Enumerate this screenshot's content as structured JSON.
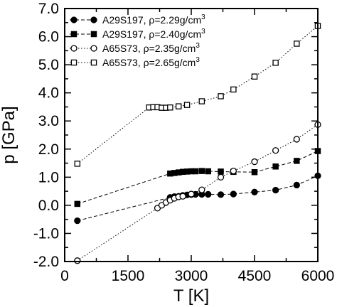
{
  "chart_data": {
    "type": "scatter",
    "xlabel": "T [K]",
    "ylabel": "p [GPa]",
    "xlim": [
      0,
      6000
    ],
    "ylim": [
      -2.0,
      7.0
    ],
    "xticks": [
      "0",
      "1500",
      "3000",
      "4500",
      "6000"
    ],
    "xtick_values": [
      0,
      1500,
      3000,
      4500,
      6000
    ],
    "yticks": [
      "-2.0",
      "-1.0",
      "0.0",
      "1.0",
      "2.0",
      "3.0",
      "4.0",
      "5.0",
      "6.0",
      "7.0"
    ],
    "ytick_values": [
      -2,
      -1,
      0,
      1,
      2,
      3,
      4,
      5,
      6,
      7
    ],
    "grid": false,
    "legend_position": "top-left",
    "series": [
      {
        "name": "A29S197, ρ=2.29g/cm",
        "name_sup": "3",
        "marker": "filled-circle",
        "line": "dashed",
        "x": [
          300,
          2500,
          2600,
          2700,
          2800,
          2900,
          3000,
          3100,
          3250,
          3400,
          3700,
          4000,
          4500,
          5000,
          5500,
          6000
        ],
        "y": [
          -0.55,
          0.28,
          0.31,
          0.32,
          0.35,
          0.37,
          0.38,
          0.39,
          0.39,
          0.39,
          0.38,
          0.4,
          0.47,
          0.54,
          0.72,
          1.05
        ]
      },
      {
        "name": "A29S197, ρ=2.40g/cm",
        "name_sup": "3",
        "marker": "filled-square",
        "line": "dashed",
        "x": [
          300,
          2500,
          2600,
          2700,
          2800,
          2900,
          3000,
          3100,
          3250,
          3400,
          3700,
          4000,
          4500,
          5000,
          5500,
          6000
        ],
        "y": [
          0.05,
          1.13,
          1.15,
          1.17,
          1.19,
          1.2,
          1.21,
          1.21,
          1.22,
          1.21,
          1.2,
          1.19,
          1.18,
          1.38,
          1.58,
          1.93
        ]
      },
      {
        "name": "A65S73, ρ=2.35g/cm",
        "name_sup": "3",
        "marker": "open-circle",
        "line": "dotted",
        "x": [
          300,
          2200,
          2300,
          2400,
          2500,
          2600,
          2700,
          2800,
          3000,
          3250,
          3700,
          4000,
          4500,
          5000,
          5500,
          6000
        ],
        "y": [
          -1.97,
          -0.1,
          0.0,
          0.1,
          0.18,
          0.25,
          0.3,
          0.32,
          0.4,
          0.55,
          1.0,
          1.22,
          1.55,
          1.95,
          2.35,
          2.87
        ]
      },
      {
        "name": "A65S73, ρ=2.65g/cm",
        "name_sup": "3",
        "marker": "open-square",
        "line": "dotted",
        "x": [
          300,
          2000,
          2100,
          2200,
          2300,
          2400,
          2500,
          2700,
          2900,
          3250,
          3700,
          4000,
          4500,
          5000,
          5500,
          6000
        ],
        "y": [
          1.48,
          3.48,
          3.49,
          3.49,
          3.47,
          3.47,
          3.48,
          3.52,
          3.57,
          3.7,
          3.88,
          4.12,
          4.58,
          5.07,
          5.75,
          6.38
        ]
      }
    ]
  }
}
